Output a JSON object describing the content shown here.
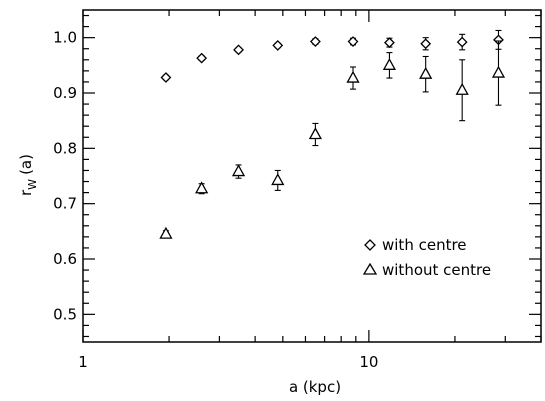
{
  "chart_data": {
    "type": "scatter",
    "xlabel": "a (kpc)",
    "ylabel": "r",
    "ylabel_sub": "W",
    "ylabel_suffix": "(a)",
    "xscale": "log",
    "xlim": [
      1,
      40
    ],
    "ylim": [
      0.45,
      1.05
    ],
    "xticks": [
      {
        "value": 1,
        "label": "1"
      },
      {
        "value": 10,
        "label": "10"
      }
    ],
    "yticks": [
      {
        "value": 0.5,
        "label": "0.5"
      },
      {
        "value": 0.6,
        "label": "0.6"
      },
      {
        "value": 0.7,
        "label": "0.7"
      },
      {
        "value": 0.8,
        "label": "0.8"
      },
      {
        "value": 0.9,
        "label": "0.9"
      },
      {
        "value": 1.0,
        "label": "1.0"
      }
    ],
    "grid": false,
    "legend_position": "lower-right",
    "series": [
      {
        "name": "with centre",
        "marker": "diamond",
        "x": [
          1.95,
          2.6,
          3.5,
          4.8,
          6.5,
          8.8,
          11.8,
          15.8,
          21.2,
          28.4
        ],
        "y": [
          0.928,
          0.963,
          0.978,
          0.986,
          0.993,
          0.993,
          0.991,
          0.989,
          0.992,
          0.996
        ],
        "err": [
          0.004,
          0.004,
          0.004,
          0.004,
          0.005,
          0.006,
          0.008,
          0.011,
          0.014,
          0.017
        ]
      },
      {
        "name": "without centre",
        "marker": "triangle",
        "x": [
          1.95,
          2.6,
          3.5,
          4.8,
          6.5,
          8.8,
          11.8,
          15.8,
          21.2,
          28.4
        ],
        "y": [
          0.645,
          0.727,
          0.758,
          0.742,
          0.825,
          0.927,
          0.95,
          0.934,
          0.905,
          0.936
        ],
        "err": [
          0.006,
          0.009,
          0.012,
          0.018,
          0.02,
          0.02,
          0.023,
          0.032,
          0.055,
          0.058
        ]
      }
    ]
  }
}
